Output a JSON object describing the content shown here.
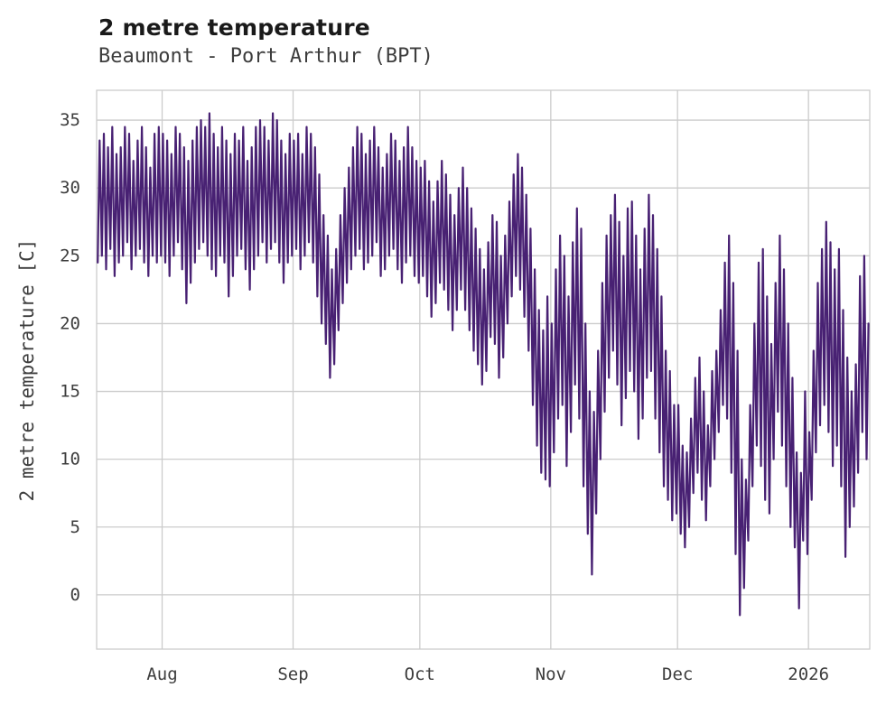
{
  "header": {
    "title": "2 metre temperature",
    "subtitle": "Beaumont - Port Arthur (BPT)"
  },
  "chart_data": {
    "type": "line",
    "title": "2 metre temperature",
    "subtitle": "Beaumont - Port Arthur (BPT)",
    "xlabel": "",
    "ylabel": "2 metre temperature [C]",
    "ylim": [
      -4,
      37.2
    ],
    "yticks": [
      0,
      5,
      10,
      15,
      20,
      25,
      30,
      35
    ],
    "x_unit": "day_index",
    "xticks": [
      {
        "label": "Aug",
        "day": 15.5
      },
      {
        "label": "Sep",
        "day": 46.5
      },
      {
        "label": "Oct",
        "day": 76.5
      },
      {
        "label": "Nov",
        "day": 107.5
      },
      {
        "label": "Dec",
        "day": 137.5
      },
      {
        "label": "2026",
        "day": 168.5
      }
    ],
    "grid": true,
    "grid_color": "#cccccc",
    "tick_color": "#3d3d3d",
    "line_color": "#482173",
    "legend_position": "none",
    "series_name": "2 metre temperature",
    "daily": {
      "min": [
        24.5,
        25,
        24,
        25.5,
        23.5,
        24.5,
        25,
        26,
        24,
        25,
        25.5,
        24.5,
        23.5,
        25,
        24.5,
        25,
        24.5,
        23.5,
        25,
        26,
        24,
        21.5,
        23,
        24.5,
        25.5,
        26,
        25,
        24,
        23.5,
        25,
        24.5,
        22,
        23.5,
        25,
        25.5,
        24,
        22.5,
        24,
        25,
        26,
        24.5,
        25.5,
        26,
        24.5,
        23,
        24.5,
        25,
        25.5,
        24,
        25,
        26,
        24.5,
        22,
        20,
        18.5,
        16,
        17,
        19.5,
        21.5,
        23,
        24,
        25,
        25.5,
        24,
        24.5,
        25,
        26,
        23.5,
        24,
        25,
        25.5,
        24,
        23,
        24.5,
        25,
        23.5,
        23,
        23.5,
        22,
        20.5,
        21.5,
        23,
        22.5,
        21,
        19.5,
        21,
        22.5,
        21,
        19.5,
        18,
        17,
        15.5,
        16.5,
        19,
        18.5,
        16,
        17.5,
        20,
        22,
        23.5,
        22.5,
        20.5,
        18,
        14,
        11,
        9,
        8.5,
        8,
        10.5,
        13,
        14,
        9.5,
        12,
        15.5,
        13,
        8,
        4.5,
        1.5,
        6,
        10,
        13.5,
        16,
        18,
        15.5,
        12.5,
        14.5,
        16.5,
        15,
        11.5,
        13,
        16,
        16.5,
        13,
        10.5,
        8,
        7,
        5.5,
        6,
        4.5,
        3.5,
        5,
        7.5,
        9,
        7,
        5.5,
        8,
        10,
        12,
        14,
        13,
        9,
        3,
        -1.5,
        0.5,
        4,
        8,
        11,
        9.5,
        7,
        6,
        10,
        13.5,
        11,
        8,
        5,
        3.5,
        -1,
        4,
        3,
        7,
        10.5,
        12.5,
        14,
        12,
        9.5,
        11,
        8,
        2.8,
        5,
        6.5,
        9,
        12,
        10
      ],
      "max": [
        33.5,
        34,
        33,
        34.5,
        32.5,
        33,
        34.5,
        34,
        32,
        33.5,
        34.5,
        33,
        31.5,
        34,
        34.5,
        34,
        33.5,
        32.5,
        34.5,
        34,
        33,
        32,
        33.5,
        34.5,
        35,
        34.5,
        35.5,
        34,
        33,
        34.5,
        33.5,
        32.5,
        34,
        33.5,
        34.5,
        32,
        33,
        34.5,
        35,
        34.5,
        33.5,
        35.5,
        35,
        33.5,
        32.5,
        34,
        33.5,
        34,
        32.5,
        34.5,
        34,
        33,
        31,
        28,
        26.5,
        24,
        25.5,
        28,
        30,
        31.5,
        33,
        34.5,
        34,
        32.5,
        33.5,
        34.5,
        33,
        31.5,
        32.5,
        34,
        33.5,
        32,
        33,
        34.5,
        33,
        32,
        31.5,
        32,
        30.5,
        29,
        30.5,
        32,
        31,
        29.5,
        28,
        30,
        31.5,
        30,
        28.5,
        27,
        25.5,
        24,
        26,
        28,
        27.5,
        25,
        26.5,
        29,
        31,
        32.5,
        31.5,
        29.5,
        27,
        24,
        21,
        19.5,
        22,
        20,
        24,
        26.5,
        25,
        22,
        26,
        28.5,
        27,
        20,
        15,
        13.5,
        18,
        23,
        26.5,
        28,
        29.5,
        27.5,
        25,
        28.5,
        29,
        26.5,
        24,
        27,
        29.5,
        28,
        25.5,
        22,
        18,
        16.5,
        14,
        14,
        11,
        10.5,
        13,
        16,
        17.5,
        15,
        12.5,
        16.5,
        18,
        21,
        24.5,
        26.5,
        23,
        18,
        10,
        8.5,
        14,
        20,
        24.5,
        25.5,
        22,
        18.5,
        23,
        26.5,
        24,
        20,
        16,
        10.5,
        9,
        15,
        12,
        18,
        23,
        25.5,
        27.5,
        26,
        24,
        25.5,
        21,
        17.5,
        15,
        17,
        23.5,
        25,
        20
      ]
    }
  }
}
